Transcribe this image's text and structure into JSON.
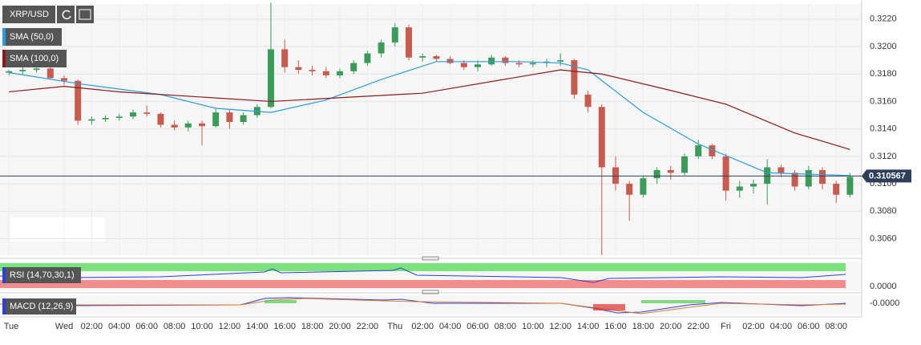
{
  "chart_data": {
    "type": "candlestick",
    "symbol": "XRP/USD",
    "x": [
      20,
      21,
      22,
      23,
      24,
      25,
      26,
      27,
      28,
      29,
      30,
      31,
      32,
      33,
      34,
      35,
      36,
      37,
      38,
      39,
      40,
      41,
      42,
      43,
      44,
      45,
      46,
      47,
      48,
      49,
      50,
      51,
      52,
      53,
      54,
      55,
      56,
      57,
      58,
      59,
      60,
      61,
      62,
      63,
      64,
      65,
      66,
      67,
      68,
      69,
      70,
      71,
      72,
      73,
      74,
      75,
      76,
      77,
      78,
      79,
      80,
      81
    ],
    "open": [
      0.3181,
      0.3182,
      0.3183,
      0.3184,
      0.3177,
      0.3175,
      0.3146,
      0.3147,
      0.3148,
      0.3149,
      0.3152,
      0.3151,
      0.3143,
      0.3141,
      0.3144,
      0.3142,
      0.3152,
      0.3145,
      0.315,
      0.3156,
      0.3198,
      0.3185,
      0.3183,
      0.3182,
      0.3179,
      0.3182,
      0.3188,
      0.3195,
      0.3203,
      0.3214,
      0.3192,
      0.3193,
      0.3191,
      0.3188,
      0.3185,
      0.3187,
      0.3192,
      0.3188,
      0.3187,
      0.3188,
      0.3189,
      0.319,
      0.3165,
      0.3156,
      0.3112,
      0.31,
      0.3092,
      0.3104,
      0.311,
      0.3108,
      0.312,
      0.3128,
      0.312,
      0.3095,
      0.3098,
      0.31,
      0.3112,
      0.3108,
      0.3098,
      0.311,
      0.31,
      0.3092
    ],
    "high": [
      0.3183,
      0.3185,
      0.3186,
      0.3185,
      0.3179,
      0.3176,
      0.3149,
      0.315,
      0.3151,
      0.3154,
      0.3157,
      0.3152,
      0.3146,
      0.3146,
      0.3146,
      0.3155,
      0.3154,
      0.3152,
      0.3158,
      0.3232,
      0.3205,
      0.319,
      0.3186,
      0.3185,
      0.3184,
      0.319,
      0.3197,
      0.3205,
      0.3217,
      0.3216,
      0.3195,
      0.3194,
      0.3193,
      0.319,
      0.319,
      0.3194,
      0.3193,
      0.319,
      0.319,
      0.3191,
      0.3195,
      0.3191,
      0.3168,
      0.3158,
      0.312,
      0.3102,
      0.3106,
      0.3112,
      0.3113,
      0.3122,
      0.3132,
      0.3129,
      0.3122,
      0.3102,
      0.3103,
      0.3118,
      0.3114,
      0.311,
      0.3113,
      0.3112,
      0.3102,
      0.3108
    ],
    "low": [
      0.3179,
      0.318,
      0.3181,
      0.3176,
      0.3172,
      0.3143,
      0.3143,
      0.3145,
      0.3146,
      0.3147,
      0.3149,
      0.3141,
      0.3139,
      0.3138,
      0.3128,
      0.3141,
      0.314,
      0.3143,
      0.3148,
      0.3155,
      0.3181,
      0.318,
      0.3179,
      0.3177,
      0.3177,
      0.318,
      0.3186,
      0.3192,
      0.32,
      0.319,
      0.3189,
      0.3189,
      0.3187,
      0.3183,
      0.3182,
      0.3186,
      0.3186,
      0.3185,
      0.3185,
      0.3185,
      0.3186,
      0.3162,
      0.3152,
      0.3048,
      0.3095,
      0.3073,
      0.309,
      0.31,
      0.3103,
      0.3106,
      0.3118,
      0.3118,
      0.3088,
      0.309,
      0.3093,
      0.3085,
      0.3105,
      0.3095,
      0.3096,
      0.3096,
      0.3086,
      0.309
    ],
    "close": [
      0.3182,
      0.3183,
      0.3184,
      0.3177,
      0.3175,
      0.3146,
      0.3147,
      0.3148,
      0.3149,
      0.3152,
      0.3151,
      0.3143,
      0.3141,
      0.3144,
      0.3142,
      0.3152,
      0.3145,
      0.315,
      0.3156,
      0.3198,
      0.3185,
      0.3183,
      0.3182,
      0.3179,
      0.3182,
      0.3188,
      0.3195,
      0.3203,
      0.3214,
      0.3192,
      0.3193,
      0.3191,
      0.3188,
      0.3185,
      0.3187,
      0.3192,
      0.3188,
      0.3187,
      0.3188,
      0.3189,
      0.319,
      0.3165,
      0.3156,
      0.3112,
      0.31,
      0.3092,
      0.3104,
      0.311,
      0.3108,
      0.312,
      0.3128,
      0.312,
      0.3095,
      0.3098,
      0.31,
      0.3112,
      0.3108,
      0.3098,
      0.311,
      0.31,
      0.3092,
      0.3105
    ],
    "up_color": "#3d9b5a",
    "down_color": "#c65b4f",
    "overlays": [
      {
        "name": "SMA (50,0)",
        "color": "#2b9be0",
        "x": [
          20,
          25,
          31,
          35,
          39,
          43,
          47,
          51,
          57,
          60,
          62,
          66,
          70,
          75,
          81
        ],
        "values": [
          0.3181,
          0.3173,
          0.3165,
          0.3155,
          0.3152,
          0.3161,
          0.3176,
          0.3189,
          0.3189,
          0.3188,
          0.3183,
          0.3152,
          0.3129,
          0.3108,
          0.3106
        ]
      },
      {
        "name": "SMA (100,0)",
        "color": "#8b1a1a",
        "x": [
          20,
          24,
          28,
          39,
          50,
          60,
          63,
          68,
          72,
          77,
          81
        ],
        "values": [
          0.3167,
          0.3171,
          0.3167,
          0.316,
          0.3166,
          0.3183,
          0.318,
          0.3168,
          0.3158,
          0.3137,
          0.3125
        ]
      }
    ],
    "last_price": 0.310567,
    "last_price_color": "#2e3f5c",
    "xlim": [
      19.35,
      81.85
    ],
    "ylim": [
      0.3048,
      0.3231
    ],
    "yticks": [
      {
        "value": 0.306,
        "label": "0.3060"
      },
      {
        "value": 0.308,
        "label": "0.3080"
      },
      {
        "value": 0.31,
        "label": "0.3100"
      },
      {
        "value": 0.312,
        "label": "0.3120"
      },
      {
        "value": 0.314,
        "label": "0.3140"
      },
      {
        "value": 0.316,
        "label": "0.3160"
      },
      {
        "value": 0.318,
        "label": "0.3180"
      },
      {
        "value": 0.32,
        "label": "0.3200"
      },
      {
        "value": 0.322,
        "label": "0.3220"
      }
    ],
    "xticks": [
      {
        "value": 20,
        "label": "Tue"
      },
      {
        "value": 24,
        "label": "Wed"
      },
      {
        "value": 26,
        "label": "02:00"
      },
      {
        "value": 28,
        "label": "04:00"
      },
      {
        "value": 30,
        "label": "06:00"
      },
      {
        "value": 32,
        "label": "08:00"
      },
      {
        "value": 34,
        "label": "10:00"
      },
      {
        "value": 36,
        "label": "12:00"
      },
      {
        "value": 38,
        "label": "14:00"
      },
      {
        "value": 40,
        "label": "16:00"
      },
      {
        "value": 42,
        "label": "18:00"
      },
      {
        "value": 44,
        "label": "20:00"
      },
      {
        "value": 46,
        "label": "22:00"
      },
      {
        "value": 48,
        "label": "Thu"
      },
      {
        "value": 50,
        "label": "02:00"
      },
      {
        "value": 52,
        "label": "04:00"
      },
      {
        "value": 54,
        "label": "06:00"
      },
      {
        "value": 56,
        "label": "08:00"
      },
      {
        "value": 58,
        "label": "10:00"
      },
      {
        "value": 60,
        "label": "12:00"
      },
      {
        "value": 62,
        "label": "14:00"
      },
      {
        "value": 64,
        "label": "16:00"
      },
      {
        "value": 66,
        "label": "18:00"
      },
      {
        "value": 68,
        "label": "20:00"
      },
      {
        "value": 70,
        "label": "22:00"
      },
      {
        "value": 72,
        "label": "Fri"
      },
      {
        "value": 74,
        "label": "02:00"
      },
      {
        "value": 76,
        "label": "04:00"
      },
      {
        "value": 78,
        "label": "06:00"
      },
      {
        "value": 80,
        "label": "08:00"
      }
    ],
    "grid": true,
    "rsi": {
      "name": "RSI (14,70,30,1)",
      "tick": "0.0000"
    },
    "macd": {
      "name": "MACD (12,26,9)",
      "tick": "-0.0000"
    }
  }
}
